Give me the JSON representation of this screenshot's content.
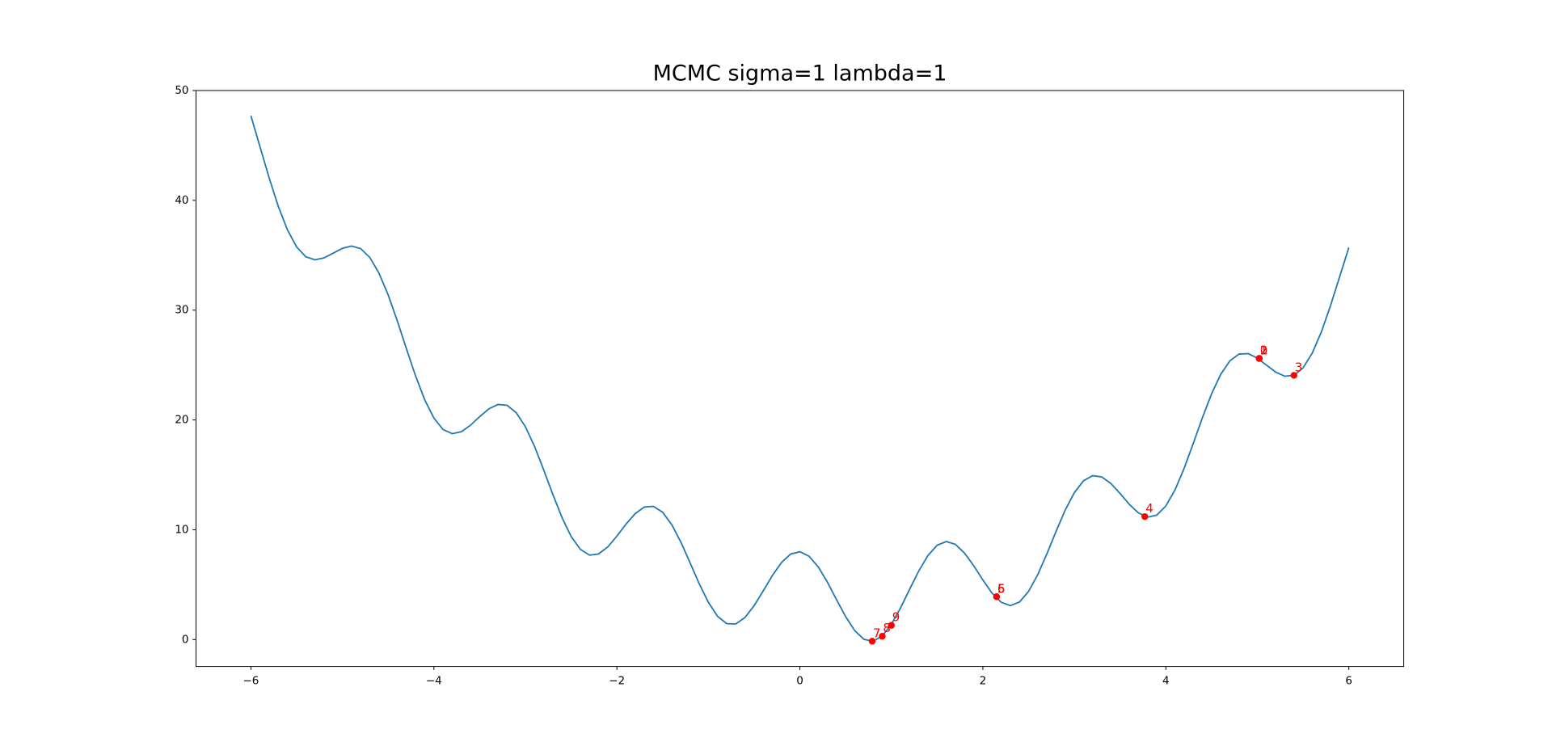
{
  "chart_data": {
    "type": "line",
    "title": "MCMC sigma=1 lambda=1",
    "x": [
      -6,
      -5.9,
      -5.8,
      -5.7,
      -5.6,
      -5.5,
      -5.4,
      -5.3,
      -5.2,
      -5.1,
      -5,
      -4.9,
      -4.8,
      -4.7,
      -4.6,
      -4.5,
      -4.4,
      -4.3,
      -4.2,
      -4.1,
      -4,
      -3.9,
      -3.8,
      -3.7,
      -3.6,
      -3.5,
      -3.4,
      -3.3,
      -3.2,
      -3.1,
      -3,
      -2.9,
      -2.8,
      -2.7,
      -2.6,
      -2.5,
      -2.4,
      -2.3,
      -2.2,
      -2.1,
      -2,
      -1.9,
      -1.8,
      -1.7,
      -1.6,
      -1.5,
      -1.4,
      -1.3,
      -1.2,
      -1.1,
      -1,
      -0.9,
      -0.8,
      -0.7,
      -0.6,
      -0.5,
      -0.4,
      -0.3,
      -0.2,
      -0.1,
      0,
      0.1,
      0.2,
      0.3,
      0.4,
      0.5,
      0.6,
      0.7,
      0.8,
      0.9,
      1,
      1.1,
      1.2,
      1.3,
      1.4,
      1.5,
      1.6,
      1.7,
      1.8,
      1.9,
      2,
      2.1,
      2.2,
      2.3,
      2.4,
      2.5,
      2.6,
      2.7,
      2.8,
      2.9,
      3,
      3.1,
      3.2,
      3.3,
      3.4,
      3.5,
      3.6,
      3.7,
      3.8,
      3.9,
      4,
      4.1,
      4.2,
      4.3,
      4.4,
      4.5,
      4.6,
      4.7,
      4.8,
      4.9,
      5,
      5.1,
      5.2,
      5.3,
      5.4,
      5.5,
      5.6,
      5.7,
      5.8,
      5.9,
      6
    ],
    "series": [
      {
        "color": "#1f77b4",
        "values": [
          47.7,
          44.86,
          42.02,
          39.43,
          37.29,
          35.75,
          34.86,
          34.58,
          34.76,
          35.19,
          35.63,
          35.84,
          35.6,
          34.79,
          33.36,
          31.39,
          29.02,
          26.48,
          24.0,
          21.83,
          20.17,
          19.13,
          18.75,
          18.93,
          19.52,
          20.3,
          21.01,
          21.41,
          21.33,
          20.66,
          19.38,
          17.59,
          15.45,
          13.21,
          11.12,
          9.39,
          8.22,
          7.69,
          7.8,
          8.43,
          9.42,
          10.52,
          11.47,
          12.07,
          12.13,
          11.59,
          10.46,
          8.86,
          6.99,
          5.08,
          3.39,
          2.12,
          1.45,
          1.42,
          2.01,
          3.09,
          4.44,
          5.84,
          7.03,
          7.79,
          8.0,
          7.59,
          6.63,
          5.24,
          3.64,
          2.09,
          0.81,
          0.02,
          -0.15,
          0.32,
          1.39,
          2.88,
          4.59,
          6.26,
          7.66,
          8.59,
          8.93,
          8.67,
          7.87,
          6.72,
          5.42,
          4.23,
          3.4,
          3.09,
          3.42,
          4.39,
          5.92,
          7.81,
          9.85,
          11.79,
          13.38,
          14.46,
          14.93,
          14.81,
          14.21,
          13.3,
          12.32,
          11.53,
          11.15,
          11.33,
          12.17,
          13.63,
          15.6,
          17.88,
          20.22,
          22.39,
          24.16,
          25.39,
          26.0,
          26.04,
          25.63,
          24.99,
          24.36,
          23.98,
          24.06,
          24.75,
          26.09,
          28.03,
          30.42,
          33.06,
          35.7
        ]
      }
    ],
    "points": {
      "type": "scatter",
      "color": "red",
      "x": [
        5.02,
        5.02,
        5.02,
        5.4,
        3.77,
        2.15,
        2.15,
        0.79,
        0.9,
        1.0
      ],
      "values": [
        25.6,
        25.6,
        25.6,
        24.06,
        11.2,
        3.9,
        3.9,
        -0.15,
        0.3,
        1.3
      ],
      "labels": [
        "0",
        "1",
        "2",
        "3",
        "4",
        "5",
        "6",
        "7",
        "8",
        "9"
      ]
    },
    "xlim": [
      -6.6,
      6.6
    ],
    "ylim": [
      -2.45,
      50
    ],
    "xticks": [
      {
        "value": -6,
        "label": "−6"
      },
      {
        "value": -4,
        "label": "−4"
      },
      {
        "value": -2,
        "label": "−2"
      },
      0,
      2,
      4,
      6
    ],
    "yticks": [
      0,
      10,
      20,
      30,
      40,
      50
    ],
    "grid": false
  }
}
